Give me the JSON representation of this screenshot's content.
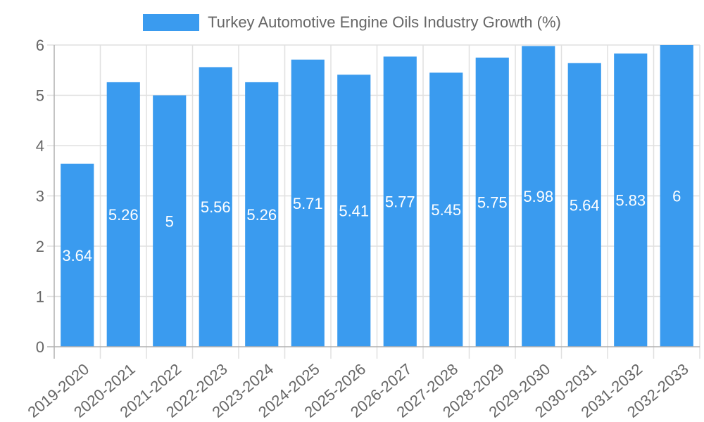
{
  "chart_data": {
    "type": "bar",
    "title": "",
    "legend": {
      "position": "top",
      "entries": [
        "Turkey Automotive Engine Oils Industry Growth (%)"
      ]
    },
    "categories": [
      "2019-2020",
      "2020-2021",
      "2021-2022",
      "2022-2023",
      "2023-2024",
      "2024-2025",
      "2025-2026",
      "2026-2027",
      "2027-2028",
      "2028-2029",
      "2029-2030",
      "2030-2031",
      "2031-2032",
      "2032-2033"
    ],
    "series": [
      {
        "name": "Turkey Automotive Engine Oils Industry Growth (%)",
        "values": [
          3.64,
          5.26,
          5,
          5.56,
          5.26,
          5.71,
          5.41,
          5.77,
          5.45,
          5.75,
          5.98,
          5.64,
          5.83,
          6
        ],
        "color": "#3a9bef"
      }
    ],
    "value_labels": [
      "3.64",
      "5.26",
      "5",
      "5.56",
      "5.26",
      "5.71",
      "5.41",
      "5.77",
      "5.45",
      "5.75",
      "5.98",
      "5.64",
      "5.83",
      "6"
    ],
    "xlabel": "",
    "ylabel": "",
    "ylim": [
      0,
      6
    ],
    "yticks": [
      "0",
      "1",
      "2",
      "3",
      "4",
      "5",
      "6"
    ],
    "grid": true,
    "colors": {
      "bar": "#3a9bef",
      "grid": "#e0e0e0",
      "axis": "#b0b0b0",
      "tick_text": "#666666",
      "label_text": "#ffffff"
    }
  },
  "legend": {
    "label": "Turkey Automotive Engine Oils Industry Growth (%)",
    "swatch_color": "#3a9bef"
  }
}
